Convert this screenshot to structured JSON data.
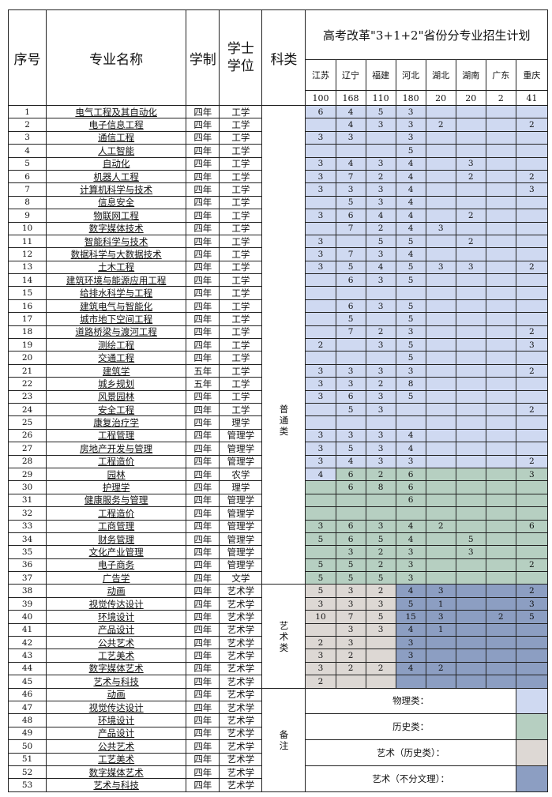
{
  "header": {
    "seq": "序号",
    "major": "专业名称",
    "duration": "学制",
    "degree": "学士学位",
    "category": "科类",
    "plan_title": "高考改革\"3+1+2\"省份分专业招生计划",
    "provinces": [
      "江苏",
      "辽宁",
      "福建",
      "河北",
      "湖北",
      "湖南",
      "广东",
      "重庆"
    ],
    "totals": [
      "100",
      "168",
      "110",
      "180",
      "20",
      "20",
      "2",
      "41"
    ]
  },
  "categories": {
    "general": "普\n通\n类",
    "art": "艺\n术\n类",
    "notes": "备\n注"
  },
  "colors": {
    "physics": "#cfd9f1",
    "history": "#b6cfc1",
    "art_history": "#ddd8d4",
    "art_any": "#8c9ec2"
  },
  "rows": [
    [
      "1",
      "电气工程及其自动化",
      "四年",
      "工学",
      [
        "6",
        "4",
        "5",
        "3",
        "",
        "",
        "",
        ""
      ]
    ],
    [
      "2",
      "电子信息工程",
      "四年",
      "工学",
      [
        "",
        "4",
        "3",
        "3",
        "2",
        "",
        "",
        "2"
      ]
    ],
    [
      "3",
      "通信工程",
      "四年",
      "工学",
      [
        "3",
        "3",
        "",
        "3",
        "",
        "",
        "",
        ""
      ]
    ],
    [
      "4",
      "人工智能",
      "四年",
      "工学",
      [
        "",
        "",
        "",
        "5",
        "",
        "",
        "",
        ""
      ]
    ],
    [
      "5",
      "自动化",
      "四年",
      "工学",
      [
        "3",
        "4",
        "3",
        "4",
        "",
        "3",
        "",
        ""
      ]
    ],
    [
      "6",
      "机器人工程",
      "四年",
      "工学",
      [
        "3",
        "7",
        "2",
        "4",
        "",
        "2",
        "",
        "2"
      ]
    ],
    [
      "7",
      "计算机科学与技术",
      "四年",
      "工学",
      [
        "3",
        "3",
        "3",
        "4",
        "",
        "",
        "",
        "3"
      ]
    ],
    [
      "8",
      "信息安全",
      "四年",
      "工学",
      [
        "",
        "5",
        "3",
        "4",
        "",
        "",
        "",
        ""
      ]
    ],
    [
      "9",
      "物联网工程",
      "四年",
      "工学",
      [
        "3",
        "6",
        "4",
        "4",
        "",
        "2",
        "",
        ""
      ]
    ],
    [
      "10",
      "数字媒体技术",
      "四年",
      "工学",
      [
        "",
        "7",
        "2",
        "4",
        "3",
        "",
        "",
        ""
      ]
    ],
    [
      "11",
      "智能科学与技术",
      "四年",
      "工学",
      [
        "3",
        "",
        "5",
        "5",
        "",
        "2",
        "",
        ""
      ]
    ],
    [
      "12",
      "数据科学与大数据技术",
      "四年",
      "工学",
      [
        "3",
        "7",
        "3",
        "4",
        "",
        "",
        "",
        ""
      ]
    ],
    [
      "13",
      "土木工程",
      "四年",
      "工学",
      [
        "3",
        "5",
        "4",
        "5",
        "3",
        "3",
        "",
        "2"
      ]
    ],
    [
      "14",
      "建筑环境与能源应用工程",
      "四年",
      "工学",
      [
        "",
        "6",
        "3",
        "5",
        "",
        "",
        "",
        ""
      ]
    ],
    [
      "15",
      "给排水科学与工程",
      "四年",
      "工学",
      [
        "",
        "",
        "",
        "",
        "",
        "",
        "",
        ""
      ]
    ],
    [
      "16",
      "建筑电气与智能化",
      "四年",
      "工学",
      [
        "",
        "6",
        "3",
        "5",
        "",
        "",
        "",
        ""
      ]
    ],
    [
      "17",
      "城市地下空间工程",
      "四年",
      "工学",
      [
        "",
        "5",
        "",
        "5",
        "",
        "",
        "",
        ""
      ]
    ],
    [
      "18",
      "道路桥梁与渡河工程",
      "四年",
      "工学",
      [
        "",
        "7",
        "2",
        "3",
        "",
        "",
        "",
        "2"
      ]
    ],
    [
      "19",
      "测绘工程",
      "四年",
      "工学",
      [
        "2",
        "",
        "3",
        "5",
        "",
        "",
        "",
        "3"
      ]
    ],
    [
      "20",
      "交通工程",
      "四年",
      "工学",
      [
        "",
        "",
        "",
        "5",
        "",
        "",
        "",
        ""
      ]
    ],
    [
      "21",
      "建筑学",
      "五年",
      "工学",
      [
        "3",
        "3",
        "3",
        "3",
        "",
        "",
        "",
        "2"
      ]
    ],
    [
      "22",
      "城乡规划",
      "五年",
      "工学",
      [
        "3",
        "3",
        "2",
        "8",
        "",
        "",
        "",
        ""
      ]
    ],
    [
      "23",
      "风景园林",
      "四年",
      "工学",
      [
        "3",
        "6",
        "3",
        "5",
        "",
        "",
        "",
        ""
      ]
    ],
    [
      "24",
      "安全工程",
      "四年",
      "工学",
      [
        "",
        "5",
        "3",
        "",
        "",
        "",
        "",
        "2"
      ]
    ],
    [
      "25",
      "康复治疗学",
      "四年",
      "理学",
      [
        "",
        "",
        "",
        "",
        "",
        "",
        "",
        ""
      ]
    ],
    [
      "26",
      "工程管理",
      "四年",
      "管理学",
      [
        "3",
        "3",
        "3",
        "4",
        "",
        "",
        "",
        ""
      ]
    ],
    [
      "27",
      "房地产开发与管理",
      "四年",
      "管理学",
      [
        "3",
        "5",
        "3",
        "4",
        "",
        "",
        "",
        ""
      ]
    ],
    [
      "28",
      "工程造价",
      "四年",
      "管理学",
      [
        "3",
        "4",
        "3",
        "3",
        "",
        "",
        "",
        "2"
      ]
    ],
    [
      "29",
      "园林",
      "四年",
      "农学",
      [
        "4",
        "6",
        "2",
        "6",
        "",
        "",
        "",
        "3"
      ]
    ],
    [
      "30",
      "护理学",
      "四年",
      "理学",
      [
        "",
        "6",
        "8",
        "6",
        "",
        "",
        "",
        ""
      ]
    ],
    [
      "31",
      "健康服务与管理",
      "四年",
      "管理学",
      [
        "",
        "",
        "",
        "6",
        "",
        "",
        "",
        ""
      ]
    ],
    [
      "32",
      "工程造价",
      "四年",
      "管理学",
      [
        "",
        "",
        "",
        "",
        "",
        "",
        "",
        ""
      ]
    ],
    [
      "33",
      "工商管理",
      "四年",
      "管理学",
      [
        "3",
        "6",
        "3",
        "4",
        "2",
        "",
        "",
        "6"
      ]
    ],
    [
      "34",
      "财务管理",
      "四年",
      "管理学",
      [
        "5",
        "6",
        "5",
        "4",
        "",
        "5",
        "",
        ""
      ]
    ],
    [
      "35",
      "文化产业管理",
      "四年",
      "管理学",
      [
        "",
        "3",
        "2",
        "3",
        "",
        "3",
        "",
        ""
      ]
    ],
    [
      "36",
      "电子商务",
      "四年",
      "管理学",
      [
        "5",
        "5",
        "2",
        "3",
        "",
        "",
        "",
        "2"
      ]
    ],
    [
      "37",
      "广告学",
      "四年",
      "文学",
      [
        "5",
        "5",
        "5",
        "3",
        "",
        "",
        "",
        ""
      ]
    ],
    [
      "38",
      "动画",
      "四年",
      "艺术学",
      [
        "5",
        "3",
        "2",
        "4",
        "3",
        "",
        "",
        "2"
      ]
    ],
    [
      "39",
      "视觉传达设计",
      "四年",
      "艺术学",
      [
        "3",
        "3",
        "3",
        "5",
        "1",
        "",
        "",
        "3"
      ]
    ],
    [
      "40",
      "环境设计",
      "四年",
      "艺术学",
      [
        "10",
        "7",
        "5",
        "15",
        "3",
        "",
        "2",
        "5"
      ]
    ],
    [
      "41",
      "产品设计",
      "四年",
      "艺术学",
      [
        "",
        "3",
        "3",
        "4",
        "1",
        "",
        "",
        ""
      ]
    ],
    [
      "42",
      "公共艺术",
      "四年",
      "艺术学",
      [
        "2",
        "3",
        "",
        "3",
        "",
        "",
        "",
        ""
      ]
    ],
    [
      "43",
      "工艺美术",
      "四年",
      "艺术学",
      [
        "3",
        "2",
        "",
        "3",
        "",
        "",
        "",
        ""
      ]
    ],
    [
      "44",
      "数字媒体艺术",
      "四年",
      "艺术学",
      [
        "3",
        "2",
        "2",
        "4",
        "2",
        "",
        "",
        ""
      ]
    ],
    [
      "45",
      "艺术与科技",
      "四年",
      "艺术学",
      [
        "2",
        "",
        "",
        "",
        "",
        "",
        "",
        ""
      ]
    ],
    [
      "46",
      "动画",
      "四年",
      "艺术学",
      []
    ],
    [
      "47",
      "视觉传达设计",
      "四年",
      "艺术学",
      []
    ],
    [
      "48",
      "环境设计",
      "四年",
      "艺术学",
      []
    ],
    [
      "49",
      "产品设计",
      "四年",
      "艺术学",
      []
    ],
    [
      "50",
      "公共艺术",
      "四年",
      "艺术学",
      []
    ],
    [
      "51",
      "工艺美术",
      "四年",
      "艺术学",
      []
    ],
    [
      "52",
      "数字媒体艺术",
      "四年",
      "艺术学",
      []
    ],
    [
      "53",
      "艺术与科技",
      "四年",
      "艺术学",
      []
    ]
  ],
  "legend": [
    {
      "label": "物理类：",
      "color": "#cfd9f1"
    },
    {
      "label": "历史类：",
      "color": "#b6cfc1"
    },
    {
      "label": "艺术（历史类）：",
      "color": "#ddd8d4"
    },
    {
      "label": "艺术（不分文理）：",
      "color": "#8c9ec2"
    }
  ]
}
